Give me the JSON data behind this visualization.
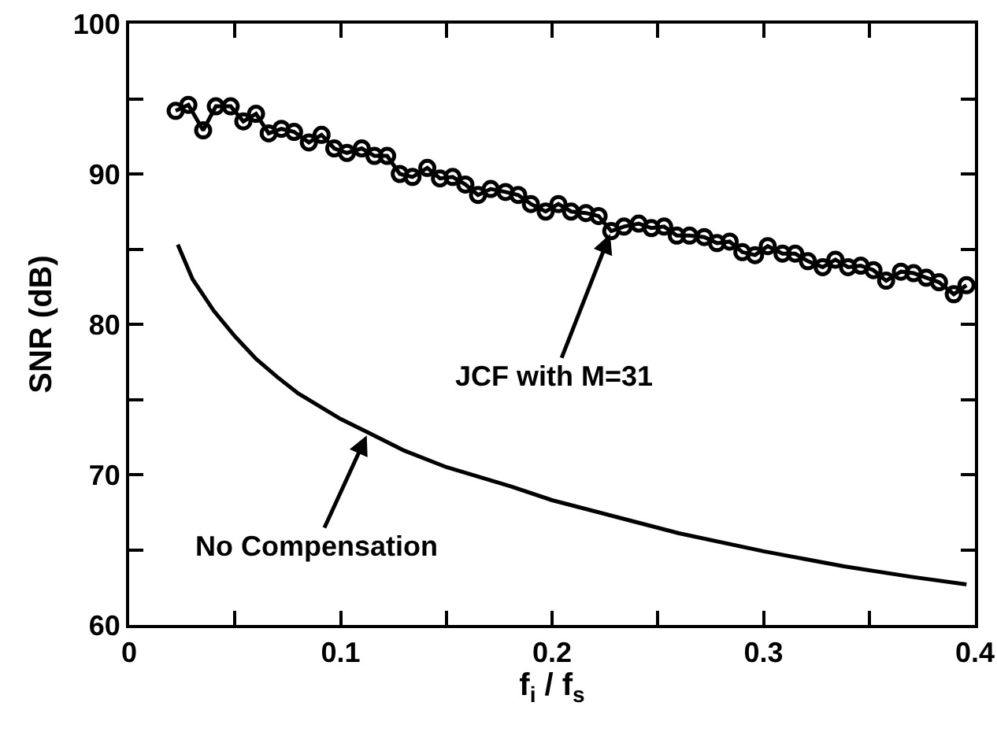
{
  "chart_data": {
    "type": "line",
    "xlabel": "f$_{i}$ / f$_{s}$",
    "ylabel": "SNR (dB)",
    "xlim": [
      0,
      0.4
    ],
    "ylim": [
      60,
      100
    ],
    "xticks": [
      0,
      {
        "value": 0.05,
        "label": null
      },
      0.1,
      {
        "value": 0.15,
        "label": null
      },
      0.2,
      {
        "value": 0.25,
        "label": null
      },
      0.3,
      {
        "value": 0.35,
        "label": null
      },
      0.4
    ],
    "yticks": [
      60,
      {
        "value": 65,
        "label": null
      },
      70,
      {
        "value": 75,
        "label": null
      },
      80,
      {
        "value": 85,
        "label": null
      },
      90,
      {
        "value": 95,
        "label": null
      },
      100
    ],
    "series": [
      {
        "color": "#000000",
        "marker": "circle",
        "x": [
          0.022,
          0.028,
          0.035,
          0.041,
          0.048,
          0.054,
          0.06,
          0.066,
          0.072,
          0.078,
          0.085,
          0.091,
          0.097,
          0.103,
          0.11,
          0.116,
          0.122,
          0.128,
          0.134,
          0.141,
          0.147,
          0.153,
          0.159,
          0.165,
          0.171,
          0.178,
          0.184,
          0.19,
          0.197,
          0.203,
          0.209,
          0.216,
          0.222,
          0.228,
          0.234,
          0.241,
          0.247,
          0.253,
          0.259,
          0.265,
          0.272,
          0.278,
          0.284,
          0.29,
          0.296,
          0.302,
          0.309,
          0.315,
          0.321,
          0.328,
          0.334,
          0.34,
          0.346,
          0.352,
          0.358,
          0.365,
          0.371,
          0.377,
          0.383,
          0.39,
          0.396
        ],
        "values": [
          94.2,
          94.6,
          92.9,
          94.5,
          94.5,
          93.5,
          94.0,
          92.7,
          93.0,
          92.8,
          92.1,
          92.6,
          91.7,
          91.4,
          91.7,
          91.2,
          91.2,
          90.0,
          89.8,
          90.4,
          89.7,
          89.8,
          89.3,
          88.6,
          89.0,
          88.8,
          88.6,
          88.0,
          87.5,
          88.0,
          87.5,
          87.4,
          87.2,
          86.2,
          86.5,
          86.7,
          86.4,
          86.5,
          85.9,
          85.9,
          85.8,
          85.4,
          85.5,
          84.8,
          84.6,
          85.2,
          84.7,
          84.7,
          84.2,
          83.8,
          84.3,
          83.8,
          83.9,
          83.6,
          82.9,
          83.5,
          83.4,
          83.1,
          82.8,
          82.0,
          82.6
        ]
      },
      {
        "color": "#000000",
        "marker": "none",
        "x": [
          0.023,
          0.03,
          0.04,
          0.05,
          0.06,
          0.07,
          0.08,
          0.1,
          0.113,
          0.13,
          0.15,
          0.181,
          0.2,
          0.23,
          0.26,
          0.3,
          0.338,
          0.37,
          0.396
        ],
        "values": [
          85.3,
          83.0,
          80.9,
          79.2,
          77.7,
          76.5,
          75.4,
          73.7,
          72.8,
          71.6,
          70.5,
          69.2,
          68.3,
          67.2,
          66.1,
          64.9,
          63.9,
          63.2,
          62.7
        ]
      }
    ],
    "annotations": [
      {
        "text": "JCF with M=31",
        "x": 0.228,
        "y": 86.2
      },
      {
        "text": "No Compensation",
        "x": 0.113,
        "y": 72.8
      }
    ]
  }
}
